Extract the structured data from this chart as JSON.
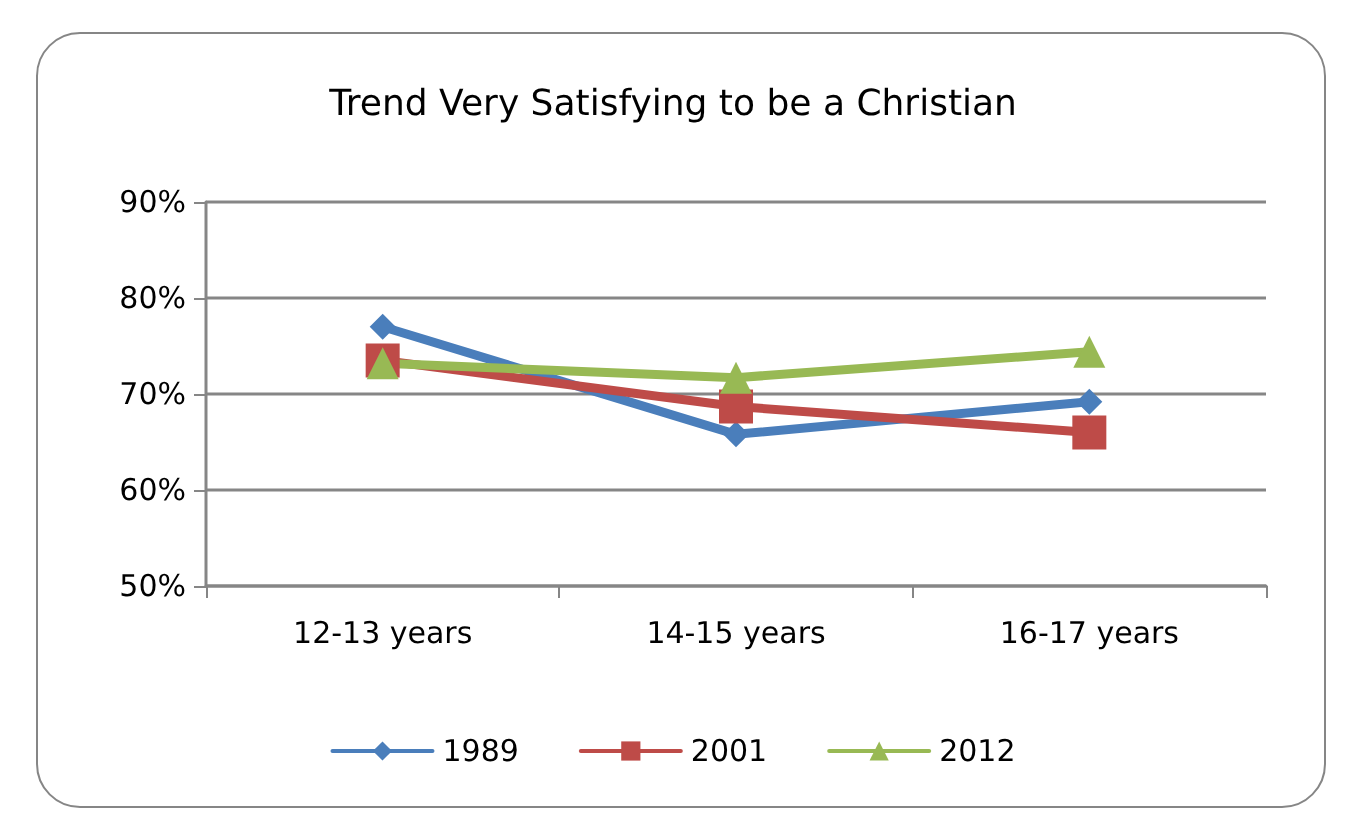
{
  "chart_data": {
    "type": "line",
    "title": "Trend Very Satisfying to be a Christian",
    "categories": [
      "12-13 years",
      "14-15 years",
      "16-17 years"
    ],
    "series": [
      {
        "name": "1989",
        "color": "#4a7ebb",
        "values": [
          77,
          65.8,
          69.2
        ],
        "marker": "diamond"
      },
      {
        "name": "2001",
        "color": "#be4b48",
        "values": [
          73.5,
          68.7,
          66
        ],
        "marker": "square"
      },
      {
        "name": "2012",
        "color": "#98b954",
        "values": [
          73.2,
          71.7,
          74.4
        ],
        "marker": "triangle"
      }
    ],
    "ylim": [
      50,
      90
    ],
    "yticks": [
      {
        "value": 50,
        "label": "50%"
      },
      {
        "value": 60,
        "label": "60%"
      },
      {
        "value": 70,
        "label": "70%"
      },
      {
        "value": 80,
        "label": "80%"
      },
      {
        "value": 90,
        "label": "90%"
      }
    ],
    "grid": "y",
    "legend": "bottom",
    "line_style": "solid"
  }
}
